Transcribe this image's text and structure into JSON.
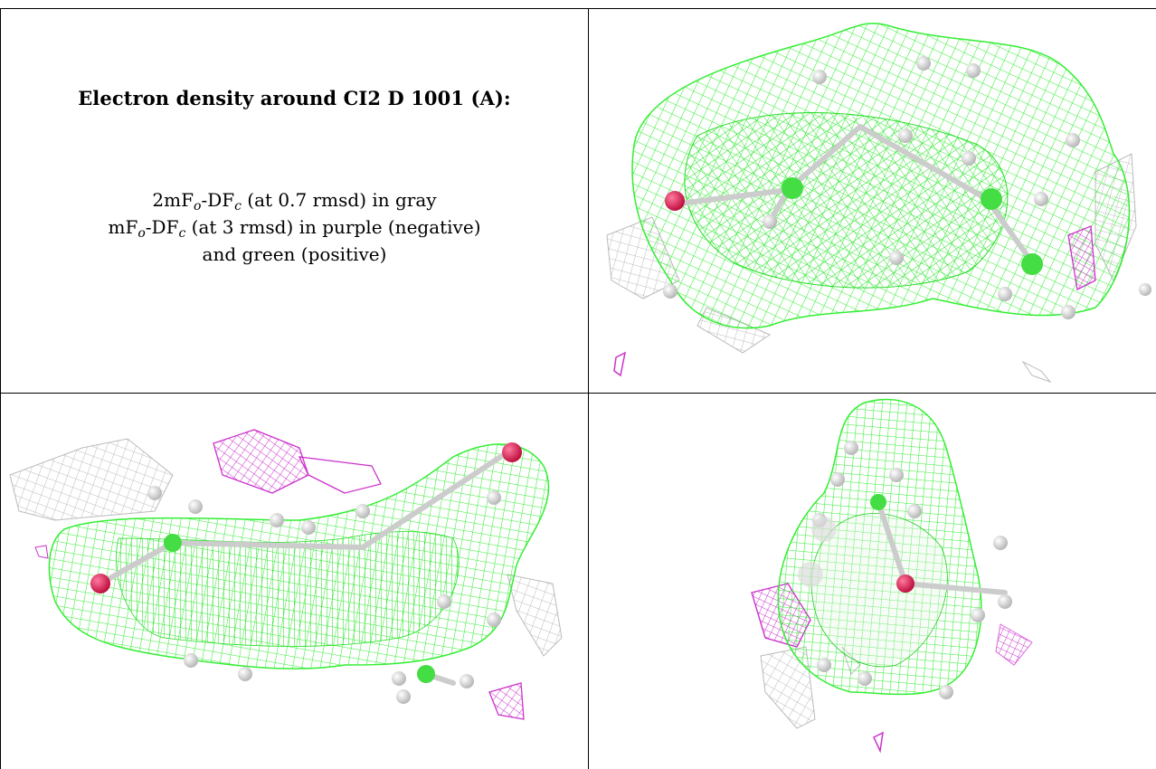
{
  "title": "Electron density around CI2 D 1001 (A):",
  "legend": {
    "line1": {
      "pre": "2mF",
      "sub1": "o",
      "mid": "-DF",
      "sub2": "c",
      "post": " (at 0.7 rmsd) in gray"
    },
    "line2": {
      "pre": "mF",
      "sub1": "o",
      "mid": "-DF",
      "sub2": "c",
      "post": " (at 3 rmsd) in purple (negative)"
    },
    "line3": "and green (positive)"
  },
  "colors": {
    "positive_mesh": "#33ee33",
    "negative_mesh": "#cc33cc",
    "twofofc_mesh": "#bbbbbb",
    "atom": "#dddddd",
    "oxygen": "#e0245e",
    "border": "#000000"
  },
  "panels": [
    {
      "view": "top-right"
    },
    {
      "view": "bottom-left"
    },
    {
      "view": "bottom-right"
    }
  ]
}
